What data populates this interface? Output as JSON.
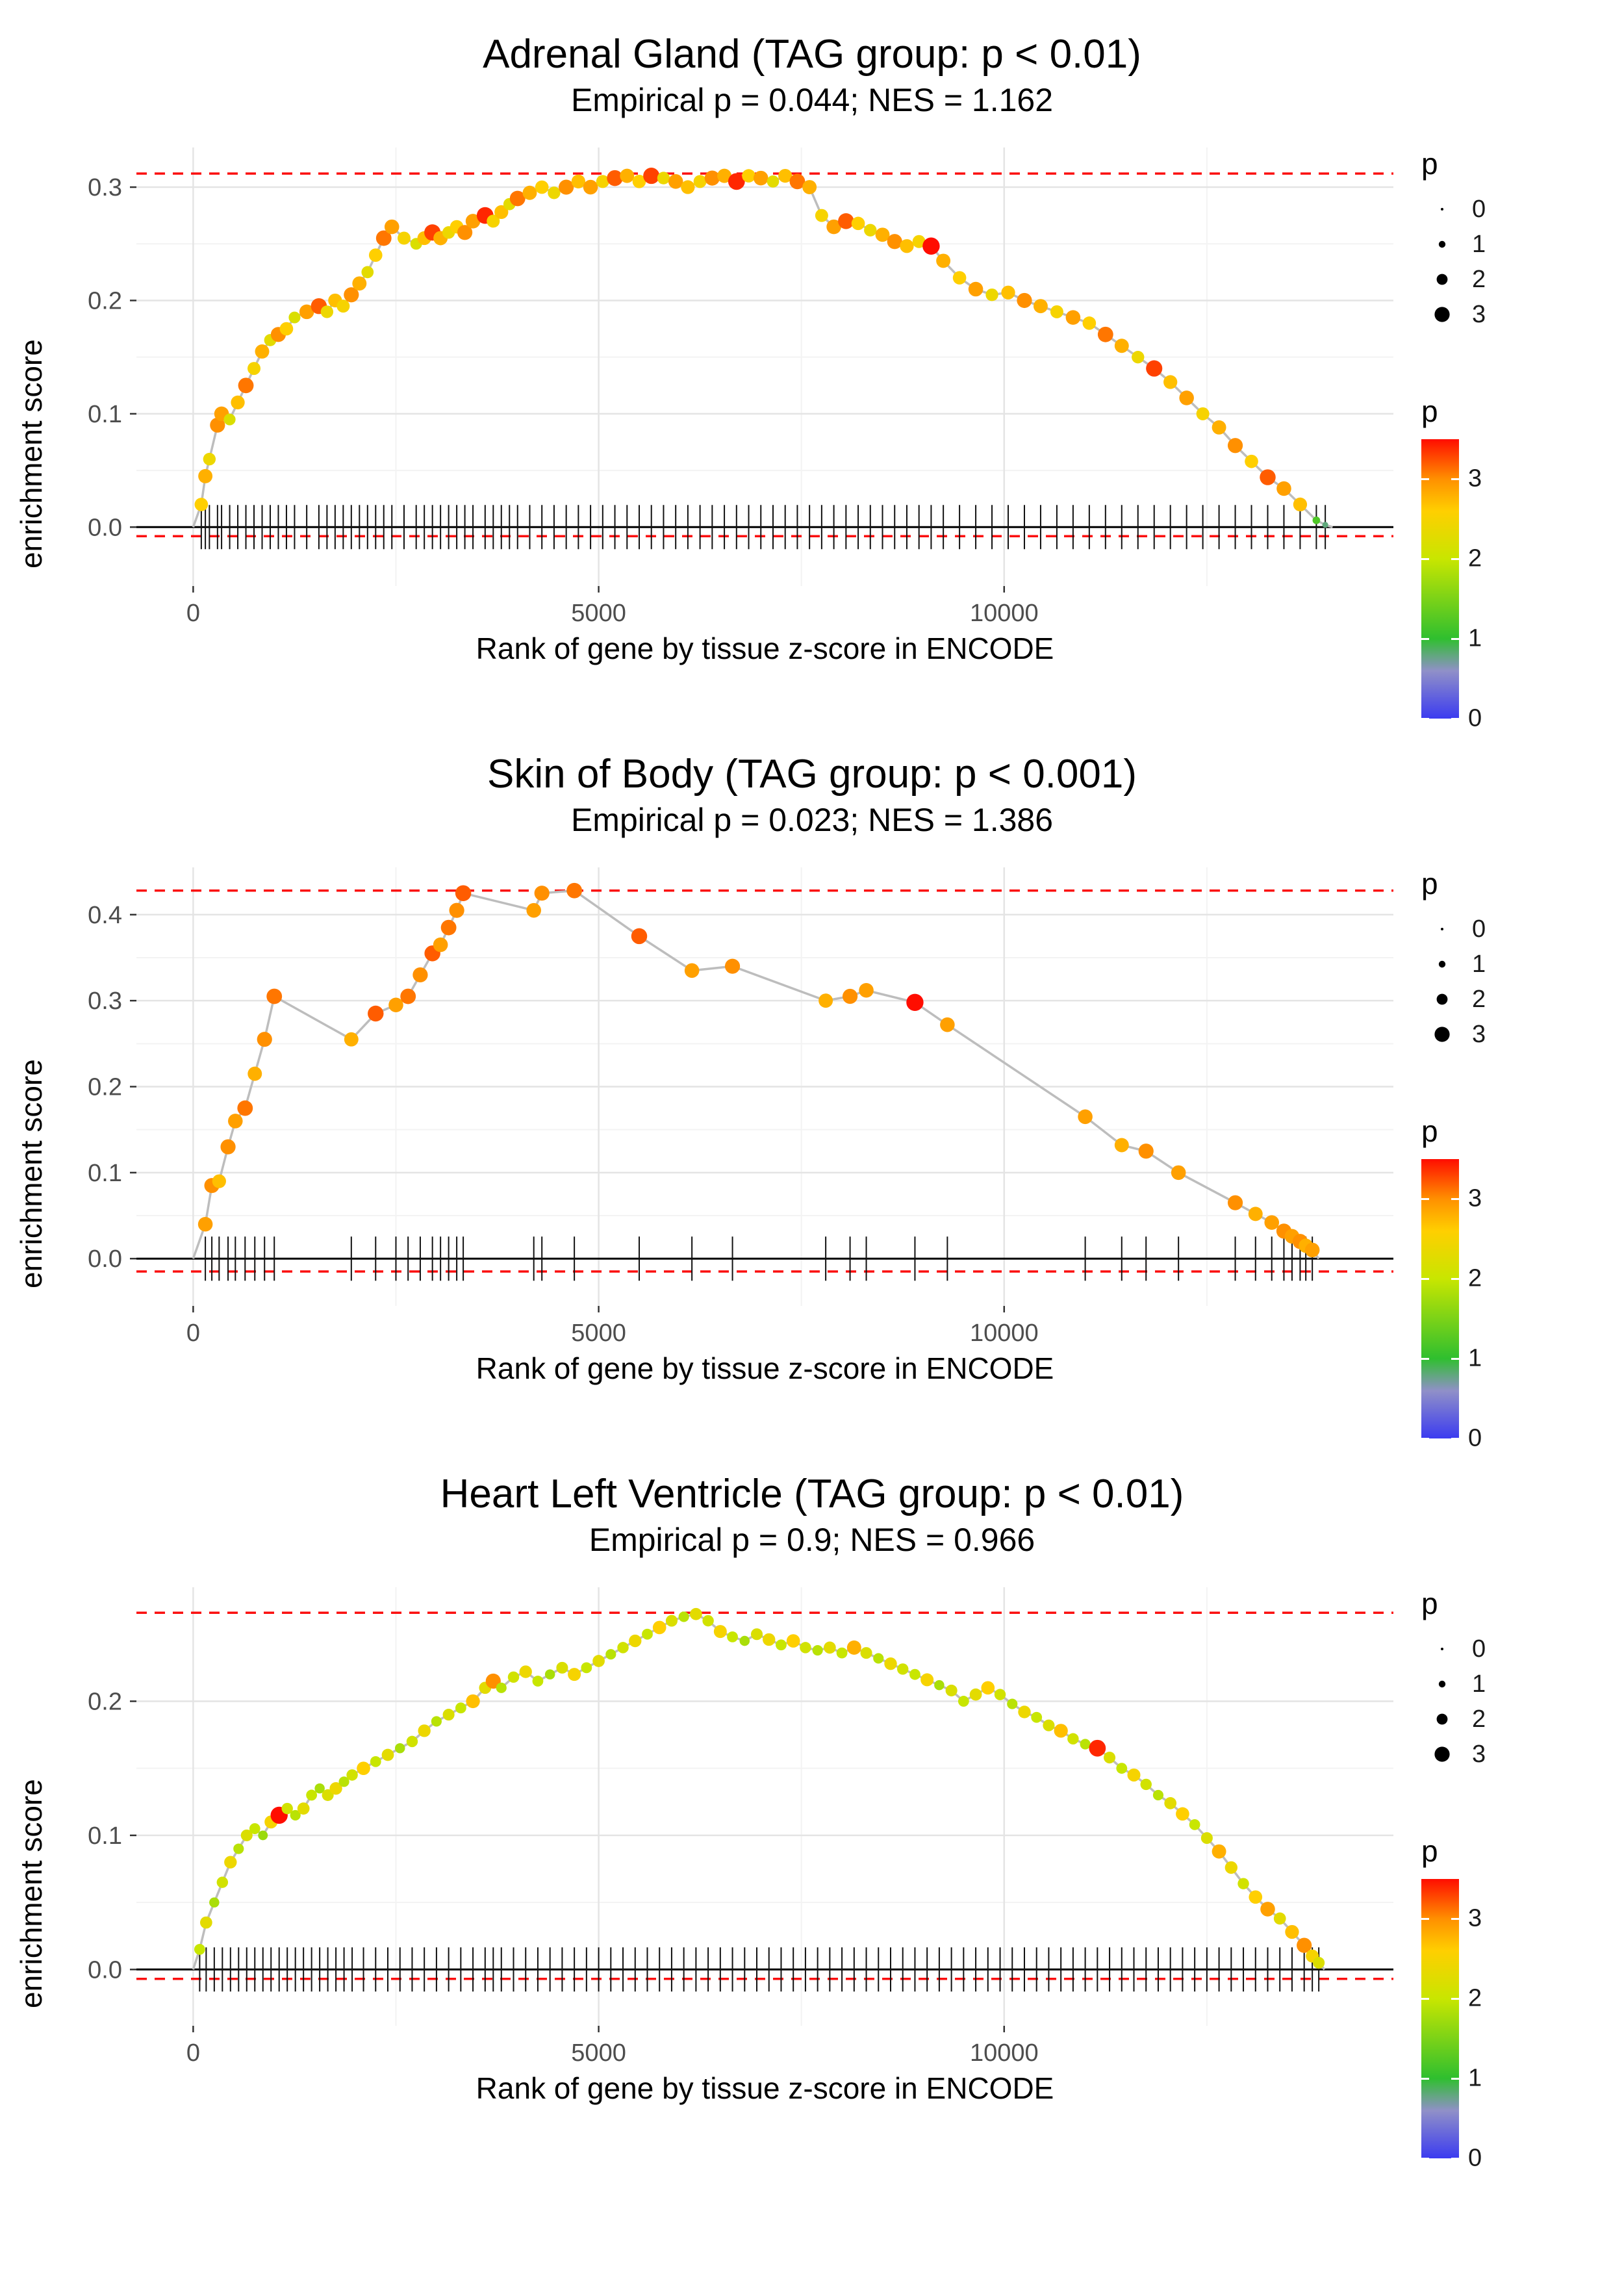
{
  "colors": {
    "background": "#ffffff",
    "dashed_line": "#fb0f0f",
    "zero_line": "#000000",
    "curve_line": "#bdbdbd",
    "grid_major": "#e4e4e4",
    "grid_minor": "#f3f3f3",
    "axis_text": "#4d4d4d",
    "rug": "#111111",
    "legend_dot": "#000000"
  },
  "legend": {
    "size_title": "p",
    "size_values": [
      0,
      1,
      2,
      3
    ],
    "size_labels": [
      "0",
      "1",
      "2",
      "3"
    ],
    "color_title": "p",
    "color_labels": [
      3,
      2,
      1,
      0
    ],
    "color_scale": {
      "min": 0,
      "max": 3.5,
      "stops": [
        [
          0,
          "#3b3bf0"
        ],
        [
          0.6,
          "#9090c8"
        ],
        [
          1,
          "#2fbf2f"
        ],
        [
          2,
          "#c8e600"
        ],
        [
          2.6,
          "#ffcf00"
        ],
        [
          3,
          "#ff9000"
        ],
        [
          3.5,
          "#ff0d00"
        ]
      ]
    }
  },
  "chart_data": [
    {
      "type": "line",
      "title": "Adrenal Gland (TAG group: p < 0.01)",
      "subtitle": "Empirical p = 0.044; NES = 1.162",
      "xlabel": "Rank of gene by tissue z-score in ENCODE",
      "ylabel": "enrichment score",
      "x_ticks": [
        0,
        5000,
        10000
      ],
      "x_tick_labels": [
        "0",
        "5000",
        "10000"
      ],
      "x_minor_ticks": [
        2500,
        7500,
        12500
      ],
      "y_ticks": [
        0,
        0.1,
        0.2,
        0.3
      ],
      "y_tick_labels": [
        "0.0",
        "0.1",
        "0.2",
        "0.3"
      ],
      "x_domain": [
        -700,
        14800
      ],
      "y_domain": [
        -0.052,
        0.335
      ],
      "x_end": 14050,
      "dashed_max": 0.312,
      "dashed_min": -0.008,
      "hits": [
        [
          100,
          0.02,
          2.6
        ],
        [
          150,
          0.045,
          2.8
        ],
        [
          200,
          0.06,
          2.4
        ],
        [
          300,
          0.09,
          3.0
        ],
        [
          350,
          0.1,
          2.9
        ],
        [
          450,
          0.095,
          2.2
        ],
        [
          550,
          0.11,
          2.7
        ],
        [
          650,
          0.125,
          3.1
        ],
        [
          750,
          0.14,
          2.5
        ],
        [
          850,
          0.155,
          2.8
        ],
        [
          950,
          0.165,
          2.3
        ],
        [
          1050,
          0.17,
          3.0
        ],
        [
          1150,
          0.175,
          2.6
        ],
        [
          1250,
          0.185,
          2.2
        ],
        [
          1400,
          0.19,
          2.9
        ],
        [
          1550,
          0.195,
          3.2
        ],
        [
          1650,
          0.19,
          2.4
        ],
        [
          1750,
          0.2,
          2.7
        ],
        [
          1850,
          0.195,
          2.5
        ],
        [
          1950,
          0.205,
          3.0
        ],
        [
          2050,
          0.215,
          2.8
        ],
        [
          2150,
          0.225,
          2.3
        ],
        [
          2250,
          0.24,
          2.6
        ],
        [
          2350,
          0.255,
          3.1
        ],
        [
          2450,
          0.265,
          2.9
        ],
        [
          2600,
          0.255,
          2.5
        ],
        [
          2750,
          0.25,
          2.2
        ],
        [
          2850,
          0.255,
          2.7
        ],
        [
          2950,
          0.26,
          3.3
        ],
        [
          3050,
          0.255,
          2.8
        ],
        [
          3150,
          0.26,
          2.4
        ],
        [
          3250,
          0.265,
          2.6
        ],
        [
          3350,
          0.26,
          3.0
        ],
        [
          3450,
          0.27,
          2.9
        ],
        [
          3600,
          0.275,
          3.4
        ],
        [
          3700,
          0.27,
          2.5
        ],
        [
          3800,
          0.278,
          2.7
        ],
        [
          3900,
          0.285,
          2.3
        ],
        [
          4000,
          0.29,
          3.1
        ],
        [
          4150,
          0.295,
          2.8
        ],
        [
          4300,
          0.3,
          2.6
        ],
        [
          4450,
          0.295,
          2.4
        ],
        [
          4600,
          0.3,
          3.0
        ],
        [
          4750,
          0.305,
          2.7
        ],
        [
          4900,
          0.3,
          2.9
        ],
        [
          5050,
          0.305,
          2.5
        ],
        [
          5200,
          0.308,
          3.2
        ],
        [
          5350,
          0.31,
          2.8
        ],
        [
          5500,
          0.305,
          2.6
        ],
        [
          5650,
          0.31,
          3.3
        ],
        [
          5800,
          0.308,
          2.4
        ],
        [
          5950,
          0.305,
          2.9
        ],
        [
          6100,
          0.3,
          2.7
        ],
        [
          6250,
          0.305,
          2.5
        ],
        [
          6400,
          0.308,
          3.0
        ],
        [
          6550,
          0.31,
          2.8
        ],
        [
          6700,
          0.305,
          3.4
        ],
        [
          6850,
          0.31,
          2.6
        ],
        [
          7000,
          0.308,
          2.9
        ],
        [
          7150,
          0.305,
          2.3
        ],
        [
          7300,
          0.31,
          2.7
        ],
        [
          7450,
          0.305,
          3.1
        ],
        [
          7600,
          0.3,
          2.8
        ],
        [
          7750,
          0.275,
          2.5
        ],
        [
          7900,
          0.265,
          2.9
        ],
        [
          8050,
          0.27,
          3.2
        ],
        [
          8200,
          0.268,
          2.6
        ],
        [
          8350,
          0.262,
          2.4
        ],
        [
          8500,
          0.258,
          2.8
        ],
        [
          8650,
          0.252,
          3.0
        ],
        [
          8800,
          0.248,
          2.7
        ],
        [
          8950,
          0.252,
          2.5
        ],
        [
          9100,
          0.248,
          3.5
        ],
        [
          9250,
          0.235,
          2.8
        ],
        [
          9450,
          0.22,
          2.6
        ],
        [
          9650,
          0.21,
          2.9
        ],
        [
          9850,
          0.205,
          2.4
        ],
        [
          10050,
          0.207,
          2.7
        ],
        [
          10250,
          0.2,
          3.0
        ],
        [
          10450,
          0.195,
          2.8
        ],
        [
          10650,
          0.19,
          2.5
        ],
        [
          10850,
          0.185,
          2.9
        ],
        [
          11050,
          0.18,
          2.6
        ],
        [
          11250,
          0.17,
          3.1
        ],
        [
          11450,
          0.16,
          2.8
        ],
        [
          11650,
          0.15,
          2.4
        ],
        [
          11850,
          0.14,
          3.3
        ],
        [
          12050,
          0.128,
          2.7
        ],
        [
          12250,
          0.114,
          2.9
        ],
        [
          12450,
          0.1,
          2.5
        ],
        [
          12650,
          0.088,
          2.8
        ],
        [
          12850,
          0.072,
          3.0
        ],
        [
          13050,
          0.058,
          2.6
        ],
        [
          13250,
          0.044,
          3.2
        ],
        [
          13450,
          0.034,
          2.9
        ],
        [
          13650,
          0.02,
          2.7
        ],
        [
          13850,
          0.006,
          1.2
        ],
        [
          13960,
          0.002,
          0.8
        ]
      ]
    },
    {
      "type": "line",
      "title": "Skin of Body (TAG group: p < 0.001)",
      "subtitle": "Empirical p = 0.023; NES = 1.386",
      "xlabel": "Rank of gene by tissue z-score in ENCODE",
      "ylabel": "enrichment score",
      "x_ticks": [
        0,
        5000,
        10000
      ],
      "x_tick_labels": [
        "0",
        "5000",
        "10000"
      ],
      "x_minor_ticks": [
        2500,
        7500,
        12500
      ],
      "y_ticks": [
        0,
        0.1,
        0.2,
        0.3,
        0.4
      ],
      "y_tick_labels": [
        "0.0",
        "0.1",
        "0.2",
        "0.3",
        "0.4"
      ],
      "x_domain": [
        -700,
        14800
      ],
      "y_domain": [
        -0.055,
        0.455
      ],
      "x_end": 13880,
      "dashed_max": 0.428,
      "dashed_min": -0.015,
      "hits": [
        [
          150,
          0.04,
          2.9
        ],
        [
          230,
          0.085,
          3.0
        ],
        [
          320,
          0.09,
          2.7
        ],
        [
          430,
          0.13,
          3.0
        ],
        [
          520,
          0.16,
          2.9
        ],
        [
          640,
          0.175,
          3.1
        ],
        [
          760,
          0.215,
          2.8
        ],
        [
          880,
          0.255,
          3.0
        ],
        [
          1000,
          0.305,
          3.1
        ],
        [
          1950,
          0.255,
          2.8
        ],
        [
          2250,
          0.285,
          3.2
        ],
        [
          2500,
          0.295,
          2.9
        ],
        [
          2650,
          0.305,
          3.1
        ],
        [
          2800,
          0.33,
          3.0
        ],
        [
          2950,
          0.355,
          3.2
        ],
        [
          3050,
          0.365,
          2.9
        ],
        [
          3150,
          0.385,
          3.1
        ],
        [
          3250,
          0.405,
          3.0
        ],
        [
          3330,
          0.425,
          3.2
        ],
        [
          4200,
          0.405,
          2.9
        ],
        [
          4300,
          0.425,
          3.0
        ],
        [
          4700,
          0.428,
          3.1
        ],
        [
          5500,
          0.375,
          3.2
        ],
        [
          6150,
          0.335,
          2.9
        ],
        [
          6650,
          0.34,
          3.0
        ],
        [
          7800,
          0.3,
          2.8
        ],
        [
          8100,
          0.305,
          3.0
        ],
        [
          8300,
          0.312,
          2.9
        ],
        [
          8900,
          0.298,
          3.5
        ],
        [
          9300,
          0.272,
          2.9
        ],
        [
          11000,
          0.165,
          2.9
        ],
        [
          11450,
          0.132,
          2.8
        ],
        [
          11750,
          0.125,
          3.0
        ],
        [
          12150,
          0.1,
          2.9
        ],
        [
          12850,
          0.065,
          3.0
        ],
        [
          13100,
          0.052,
          2.8
        ],
        [
          13300,
          0.042,
          2.9
        ],
        [
          13450,
          0.032,
          3.0
        ],
        [
          13550,
          0.026,
          2.9
        ],
        [
          13650,
          0.02,
          3.0
        ],
        [
          13720,
          0.015,
          2.8
        ],
        [
          13800,
          0.01,
          2.9
        ]
      ]
    },
    {
      "type": "line",
      "title": "Heart Left Ventricle (TAG group: p < 0.01)",
      "subtitle": "Empirical p = 0.9; NES = 0.966",
      "xlabel": "Rank of gene by tissue z-score in ENCODE",
      "ylabel": "enrichment score",
      "x_ticks": [
        0,
        5000,
        10000
      ],
      "x_tick_labels": [
        "0",
        "5000",
        "10000"
      ],
      "x_minor_ticks": [
        2500,
        7500,
        12500
      ],
      "y_ticks": [
        0,
        0.1,
        0.2
      ],
      "y_tick_labels": [
        "0.0",
        "0.1",
        "0.2"
      ],
      "x_domain": [
        -700,
        14800
      ],
      "y_domain": [
        -0.042,
        0.285
      ],
      "x_end": 13950,
      "dashed_max": 0.266,
      "dashed_min": -0.007,
      "hits": [
        [
          80,
          0.015,
          2.0
        ],
        [
          160,
          0.035,
          2.3
        ],
        [
          260,
          0.05,
          1.8
        ],
        [
          360,
          0.065,
          2.1
        ],
        [
          460,
          0.08,
          2.4
        ],
        [
          560,
          0.09,
          1.9
        ],
        [
          660,
          0.1,
          2.2
        ],
        [
          760,
          0.105,
          2.0
        ],
        [
          860,
          0.1,
          1.7
        ],
        [
          960,
          0.11,
          2.5
        ],
        [
          1060,
          0.115,
          3.5
        ],
        [
          1160,
          0.12,
          2.1
        ],
        [
          1260,
          0.115,
          1.9
        ],
        [
          1360,
          0.12,
          2.3
        ],
        [
          1460,
          0.13,
          2.0
        ],
        [
          1560,
          0.135,
          1.8
        ],
        [
          1660,
          0.13,
          2.2
        ],
        [
          1760,
          0.135,
          2.4
        ],
        [
          1860,
          0.14,
          1.9
        ],
        [
          1960,
          0.145,
          2.1
        ],
        [
          2100,
          0.15,
          2.6
        ],
        [
          2250,
          0.155,
          2.0
        ],
        [
          2400,
          0.16,
          2.3
        ],
        [
          2550,
          0.165,
          1.8
        ],
        [
          2700,
          0.17,
          2.1
        ],
        [
          2850,
          0.178,
          2.4
        ],
        [
          3000,
          0.185,
          1.9
        ],
        [
          3150,
          0.19,
          2.2
        ],
        [
          3300,
          0.195,
          2.0
        ],
        [
          3450,
          0.2,
          2.7
        ],
        [
          3600,
          0.21,
          2.3
        ],
        [
          3700,
          0.215,
          3.0
        ],
        [
          3800,
          0.21,
          1.9
        ],
        [
          3950,
          0.218,
          2.1
        ],
        [
          4100,
          0.222,
          2.4
        ],
        [
          4250,
          0.215,
          2.0
        ],
        [
          4400,
          0.22,
          1.8
        ],
        [
          4550,
          0.225,
          2.2
        ],
        [
          4700,
          0.22,
          2.5
        ],
        [
          4850,
          0.225,
          2.0
        ],
        [
          5000,
          0.23,
          2.3
        ],
        [
          5150,
          0.235,
          1.9
        ],
        [
          5300,
          0.24,
          2.1
        ],
        [
          5450,
          0.245,
          2.4
        ],
        [
          5600,
          0.25,
          2.0
        ],
        [
          5750,
          0.255,
          2.6
        ],
        [
          5900,
          0.26,
          2.2
        ],
        [
          6050,
          0.263,
          1.9
        ],
        [
          6200,
          0.265,
          2.3
        ],
        [
          6350,
          0.26,
          2.1
        ],
        [
          6500,
          0.252,
          2.5
        ],
        [
          6650,
          0.248,
          2.0
        ],
        [
          6800,
          0.245,
          1.8
        ],
        [
          6950,
          0.25,
          2.2
        ],
        [
          7100,
          0.246,
          2.4
        ],
        [
          7250,
          0.242,
          2.0
        ],
        [
          7400,
          0.245,
          2.6
        ],
        [
          7550,
          0.24,
          2.1
        ],
        [
          7700,
          0.238,
          1.9
        ],
        [
          7850,
          0.24,
          2.3
        ],
        [
          8000,
          0.236,
          2.0
        ],
        [
          8150,
          0.24,
          2.8
        ],
        [
          8300,
          0.236,
          2.2
        ],
        [
          8450,
          0.232,
          1.9
        ],
        [
          8600,
          0.228,
          2.4
        ],
        [
          8750,
          0.224,
          2.1
        ],
        [
          8900,
          0.22,
          2.0
        ],
        [
          9050,
          0.216,
          2.5
        ],
        [
          9200,
          0.212,
          1.8
        ],
        [
          9350,
          0.208,
          2.2
        ],
        [
          9500,
          0.2,
          2.0
        ],
        [
          9650,
          0.205,
          2.3
        ],
        [
          9800,
          0.21,
          2.6
        ],
        [
          9950,
          0.205,
          2.1
        ],
        [
          10100,
          0.198,
          1.9
        ],
        [
          10250,
          0.192,
          2.4
        ],
        [
          10400,
          0.188,
          2.0
        ],
        [
          10550,
          0.182,
          2.2
        ],
        [
          10700,
          0.178,
          2.7
        ],
        [
          10850,
          0.172,
          2.1
        ],
        [
          11000,
          0.168,
          1.9
        ],
        [
          11150,
          0.165,
          3.4
        ],
        [
          11300,
          0.158,
          2.2
        ],
        [
          11450,
          0.15,
          2.0
        ],
        [
          11600,
          0.145,
          2.5
        ],
        [
          11750,
          0.138,
          2.1
        ],
        [
          11900,
          0.13,
          1.9
        ],
        [
          12050,
          0.124,
          2.3
        ],
        [
          12200,
          0.116,
          2.6
        ],
        [
          12350,
          0.108,
          2.0
        ],
        [
          12500,
          0.098,
          2.2
        ],
        [
          12650,
          0.088,
          2.8
        ],
        [
          12800,
          0.076,
          2.4
        ],
        [
          12950,
          0.064,
          2.1
        ],
        [
          13100,
          0.054,
          2.6
        ],
        [
          13250,
          0.045,
          2.9
        ],
        [
          13400,
          0.038,
          2.3
        ],
        [
          13550,
          0.028,
          2.7
        ],
        [
          13700,
          0.018,
          3.0
        ],
        [
          13800,
          0.01,
          2.5
        ],
        [
          13880,
          0.005,
          2.2
        ]
      ]
    }
  ]
}
